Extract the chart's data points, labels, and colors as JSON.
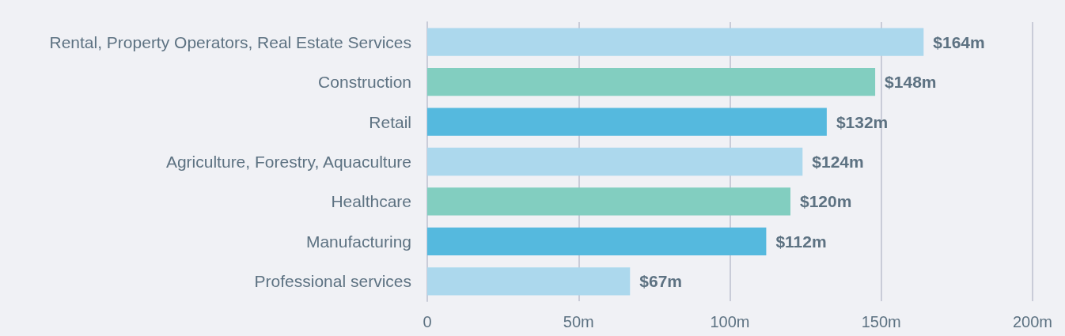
{
  "chart_data": {
    "type": "bar",
    "orientation": "horizontal",
    "categories": [
      "Rental, Property Operators, Real Estate Services",
      "Construction",
      "Retail",
      "Agriculture, Forestry, Aquaculture",
      "Healthcare",
      "Manufacturing",
      "Professional services"
    ],
    "values": [
      164,
      148,
      132,
      124,
      120,
      112,
      67
    ],
    "colors": [
      "#acd8ed",
      "#82cec0",
      "#55b9de",
      "#acd8ed",
      "#82cec0",
      "#55b9de",
      "#acd8ed"
    ],
    "value_labels": [
      "$164m",
      "$148m",
      "$132m",
      "$124m",
      "$120m",
      "$112m",
      "$67m"
    ],
    "xlim": [
      0,
      200
    ],
    "xticks": [
      0,
      {
        "value": 50,
        "label": "50m"
      },
      {
        "value": 100,
        "label": "100m"
      },
      {
        "value": 150,
        "label": "150m"
      },
      {
        "value": 200,
        "label": "200m"
      }
    ],
    "grid": "x"
  }
}
